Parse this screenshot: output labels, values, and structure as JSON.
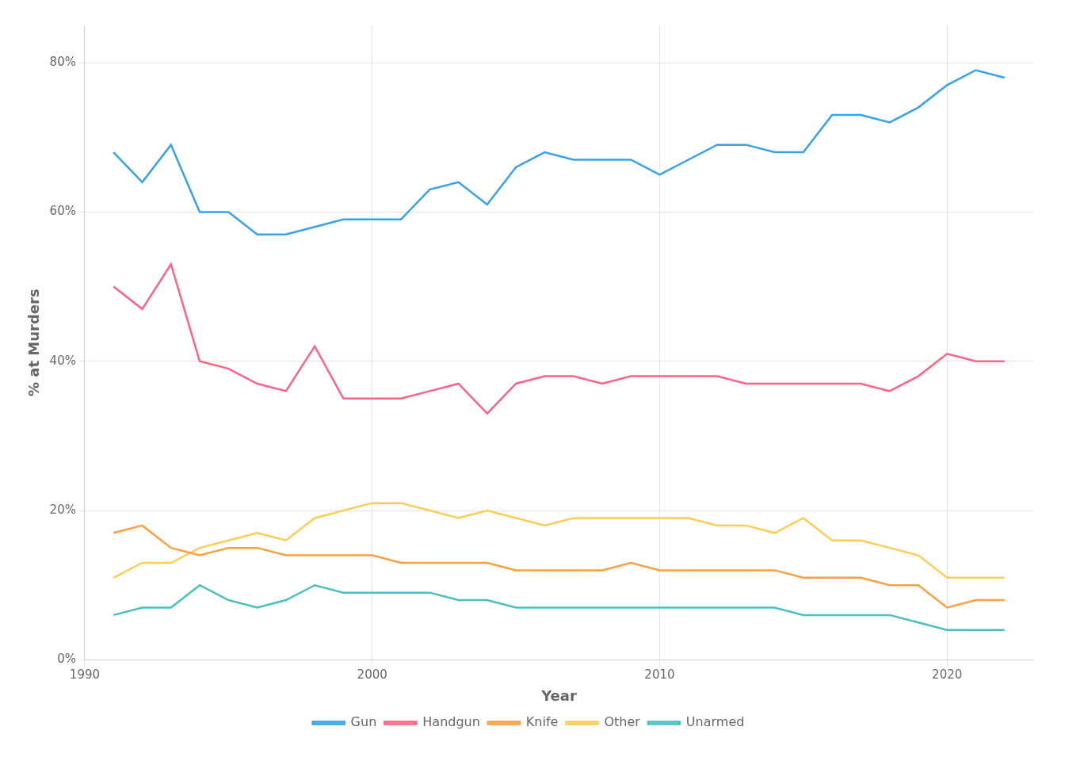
{
  "chart_data": {
    "type": "line",
    "x": [
      1991,
      1992,
      1993,
      1994,
      1995,
      1996,
      1997,
      1998,
      1999,
      2000,
      2001,
      2002,
      2003,
      2004,
      2005,
      2006,
      2007,
      2008,
      2009,
      2010,
      2011,
      2012,
      2013,
      2014,
      2015,
      2016,
      2017,
      2018,
      2019,
      2020,
      2021,
      2022
    ],
    "series": [
      {
        "name": "Gun",
        "values": [
          0.68,
          0.64,
          0.69,
          0.6,
          0.6,
          0.57,
          0.57,
          0.58,
          0.59,
          0.59,
          0.59,
          0.63,
          0.64,
          0.61,
          0.66,
          0.68,
          0.67,
          0.67,
          0.67,
          0.65,
          0.67,
          0.69,
          0.69,
          0.68,
          0.68,
          0.73,
          0.73,
          0.72,
          0.74,
          0.77,
          0.79,
          0.78
        ]
      },
      {
        "name": "Handgun",
        "values": [
          0.5,
          0.47,
          0.53,
          0.4,
          0.39,
          0.37,
          0.36,
          0.42,
          0.35,
          0.35,
          0.35,
          0.36,
          0.37,
          0.33,
          0.37,
          0.38,
          0.38,
          0.37,
          0.38,
          0.38,
          0.38,
          0.38,
          0.37,
          0.37,
          0.37,
          0.37,
          0.37,
          0.36,
          0.38,
          0.41,
          0.4,
          0.4
        ]
      },
      {
        "name": "Knife",
        "values": [
          0.17,
          0.18,
          0.15,
          0.14,
          0.15,
          0.15,
          0.14,
          0.14,
          0.14,
          0.14,
          0.13,
          0.13,
          0.13,
          0.13,
          0.12,
          0.12,
          0.12,
          0.12,
          0.13,
          0.12,
          0.12,
          0.12,
          0.12,
          0.12,
          0.11,
          0.11,
          0.11,
          0.1,
          0.1,
          0.07,
          0.08,
          0.08
        ]
      },
      {
        "name": "Other",
        "values": [
          0.11,
          0.13,
          0.13,
          0.15,
          0.16,
          0.17,
          0.16,
          0.19,
          0.2,
          0.21,
          0.21,
          0.2,
          0.19,
          0.2,
          0.19,
          0.18,
          0.19,
          0.19,
          0.19,
          0.19,
          0.19,
          0.18,
          0.18,
          0.17,
          0.19,
          0.16,
          0.16,
          0.15,
          0.14,
          0.11,
          0.11,
          0.11
        ]
      },
      {
        "name": "Unarmed",
        "values": [
          0.06,
          0.07,
          0.07,
          0.1,
          0.08,
          0.07,
          0.08,
          0.1,
          0.09,
          0.09,
          0.09,
          0.09,
          0.08,
          0.08,
          0.07,
          0.07,
          0.07,
          0.07,
          0.07,
          0.07,
          0.07,
          0.07,
          0.07,
          0.07,
          0.06,
          0.06,
          0.06,
          0.06,
          0.05,
          0.04,
          0.04,
          0.04
        ]
      }
    ],
    "x_label": "Year",
    "y_label": "% at Murders",
    "xlim": [
      1990,
      2023
    ],
    "xticks": [
      1990,
      2000,
      2010,
      2020
    ],
    "ylim": [
      0.0,
      0.85
    ],
    "yticks": [
      {
        "value": 0.0,
        "label": "0%"
      },
      {
        "value": 0.2,
        "label": "20%"
      },
      {
        "value": 0.4,
        "label": "40%"
      },
      {
        "value": 0.6,
        "label": "60%"
      },
      {
        "value": 0.8,
        "label": "80%"
      }
    ],
    "grid": true,
    "legend": "bottom"
  }
}
